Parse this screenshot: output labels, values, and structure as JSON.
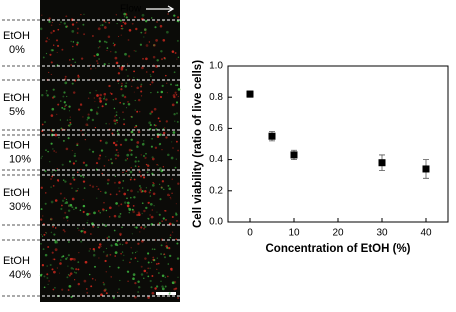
{
  "image_panel": {
    "flow_label": "Flow",
    "labels": [
      [
        "EtOH",
        "0%"
      ],
      [
        "EtOH",
        "5%"
      ],
      [
        "EtOH",
        "10%"
      ],
      [
        "EtOH",
        "30%"
      ],
      [
        "EtOH",
        "40%"
      ]
    ]
  },
  "chart_data": {
    "type": "scatter",
    "x": [
      0,
      5,
      10,
      30,
      40
    ],
    "values": [
      0.82,
      0.55,
      0.43,
      0.38,
      0.34
    ],
    "errors": [
      0.02,
      0.03,
      0.03,
      0.05,
      0.06
    ],
    "color": "#000000",
    "xlabel": "Concentration of EtOH (%)",
    "ylabel": "Cell viability (ratio of live cells)",
    "xlim": [
      -5,
      45
    ],
    "xticks": [
      0,
      10,
      20,
      30,
      40
    ],
    "ylim": [
      0,
      1.0
    ],
    "yticks": [
      {
        "value": 0,
        "label": "0.0"
      },
      0.2,
      0.4,
      0.6,
      0.8,
      {
        "value": 1.0,
        "label": "1.0"
      }
    ]
  }
}
